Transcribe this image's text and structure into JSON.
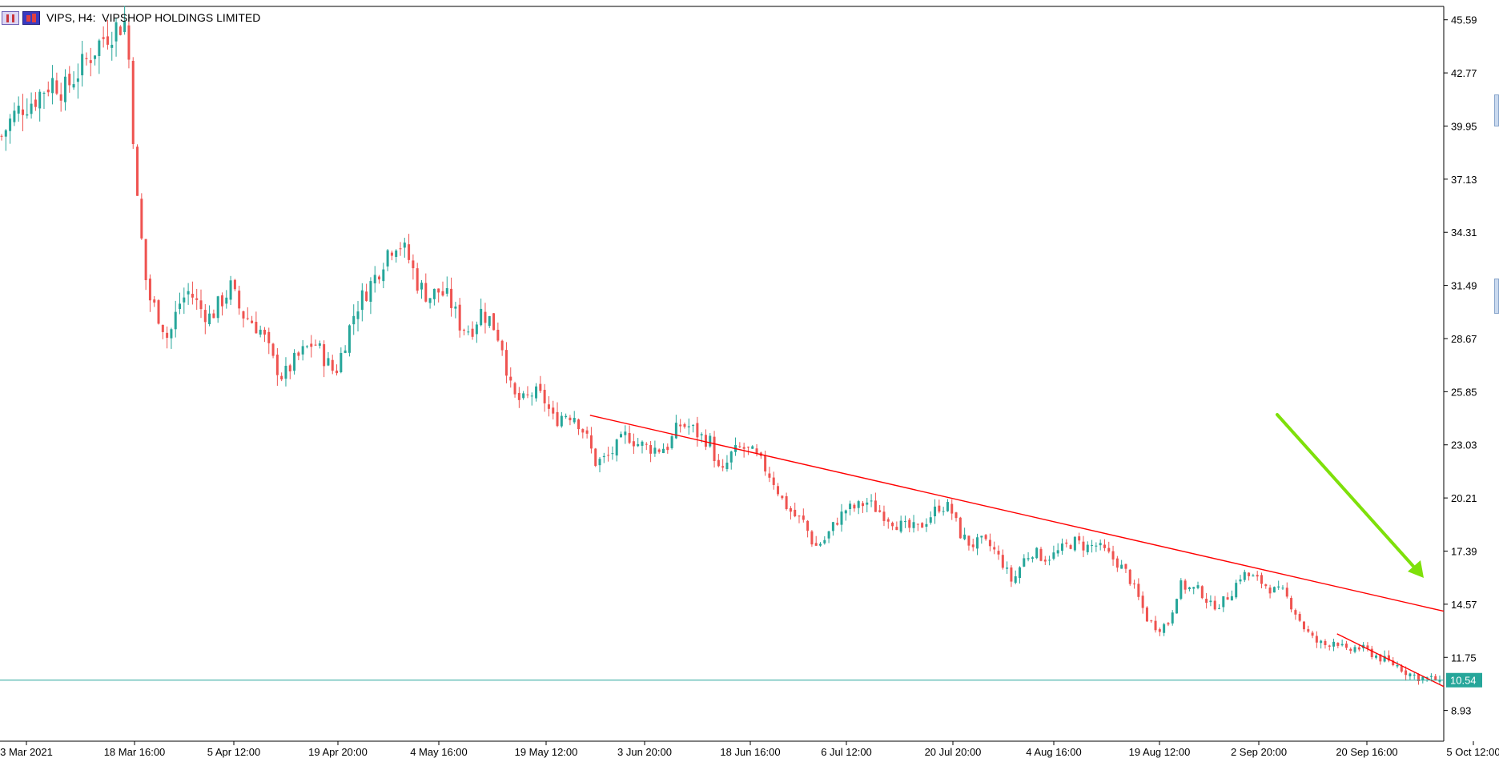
{
  "window": {
    "title": "VIPS, H4:  VIPSHOP HOLDINGS LIMITED",
    "icons": [
      "candle-table-icon",
      "indicators-icon"
    ]
  },
  "colors": {
    "bull": "#26a69a",
    "bear": "#ef5350",
    "trendline": "#ff0000",
    "arrow": "#7ee00a",
    "price_line": "#26a69a",
    "axis": "#000000"
  },
  "chart_data": {
    "type": "candlestick",
    "symbol": "VIPS",
    "timeframe": "H4",
    "y_ticks": [
      45.59,
      42.77,
      39.95,
      37.13,
      34.31,
      31.49,
      28.67,
      25.85,
      23.03,
      20.21,
      17.39,
      14.57,
      11.75,
      8.93
    ],
    "ylim": [
      7.3,
      46.3
    ],
    "x_ticks": [
      "3 Mar 2021",
      "18 Mar 16:00",
      "5 Apr 12:00",
      "19 Apr 20:00",
      "4 May 16:00",
      "19 May 12:00",
      "3 Jun 20:00",
      "18 Jun 16:00",
      "6 Jul 12:00",
      "20 Jul 20:00",
      "4 Aug 16:00",
      "19 Aug 12:00",
      "2 Sep 20:00",
      "20 Sep 16:00",
      "5 Oct 12:00"
    ],
    "current_price": "10.54",
    "closes": [
      39.4,
      40.4,
      41.0,
      41.3,
      41.9,
      42.4,
      41.8,
      42.6,
      43.3,
      44.1,
      44.8,
      45.2,
      45.5,
      36.0,
      31.0,
      30.0,
      28.6,
      30.5,
      31.2,
      30.3,
      29.8,
      30.6,
      31.4,
      30.0,
      29.6,
      29.0,
      27.5,
      26.6,
      27.4,
      28.0,
      28.5,
      27.6,
      26.8,
      28.6,
      30.3,
      31.2,
      32.1,
      33.3,
      33.9,
      33.0,
      31.5,
      30.9,
      31.2,
      30.7,
      29.4,
      29.1,
      30.1,
      29.6,
      28.4,
      25.6,
      25.3,
      25.8,
      25.5,
      24.3,
      24.7,
      24.6,
      23.6,
      22.1,
      22.3,
      22.9,
      23.6,
      23.1,
      22.9,
      22.8,
      23.0,
      24.1,
      24.0,
      23.5,
      23.2,
      21.3,
      22.5,
      22.9,
      22.6,
      22.0,
      21.2,
      20.0,
      19.3,
      18.9,
      17.6,
      18.0,
      18.9,
      19.6,
      19.7,
      20.0,
      19.6,
      19.2,
      18.8,
      18.6,
      18.6,
      19.2,
      19.8,
      19.7,
      18.3,
      17.7,
      17.9,
      17.6,
      16.8,
      15.7,
      16.9,
      17.4,
      17.0,
      17.2,
      17.6,
      17.9,
      17.6,
      17.7,
      17.3,
      16.8,
      16.2,
      15.0,
      13.7,
      13.3,
      13.6,
      15.6,
      15.4,
      15.3,
      14.5,
      14.6,
      15.2,
      16.2,
      16.0,
      15.7,
      15.3,
      15.2,
      14.3,
      13.3,
      12.6,
      12.4,
      12.7,
      12.0,
      12.3,
      12.1,
      11.8,
      11.5,
      11.3,
      10.9,
      10.7,
      10.6,
      10.54
    ],
    "trendlines": [
      {
        "from": {
          "t": 0.408,
          "price": 24.6
        },
        "to": {
          "t": 1.0,
          "price": 14.2
        }
      },
      {
        "from": {
          "t": 0.926,
          "price": 13.0
        },
        "to": {
          "t": 1.0,
          "price": 10.2
        }
      }
    ]
  }
}
